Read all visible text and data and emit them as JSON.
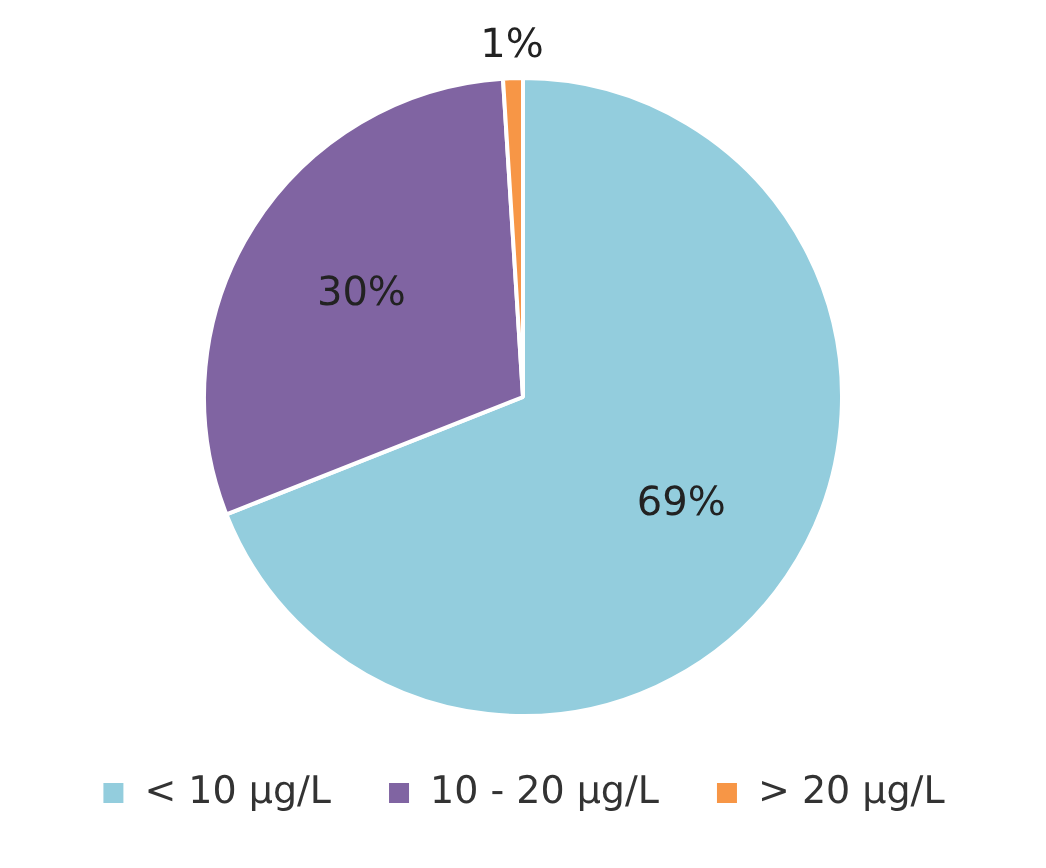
{
  "chart_data": {
    "type": "pie",
    "categories": [
      "< 10 µg/L",
      "10 - 20 µg/L",
      "> 20 µg/L"
    ],
    "values": [
      69,
      30,
      1
    ],
    "colors": [
      "#93cddd",
      "#8064a2",
      "#f79646"
    ],
    "value_labels": [
      "69%",
      "30%",
      "1%"
    ],
    "legend": "bottom"
  }
}
